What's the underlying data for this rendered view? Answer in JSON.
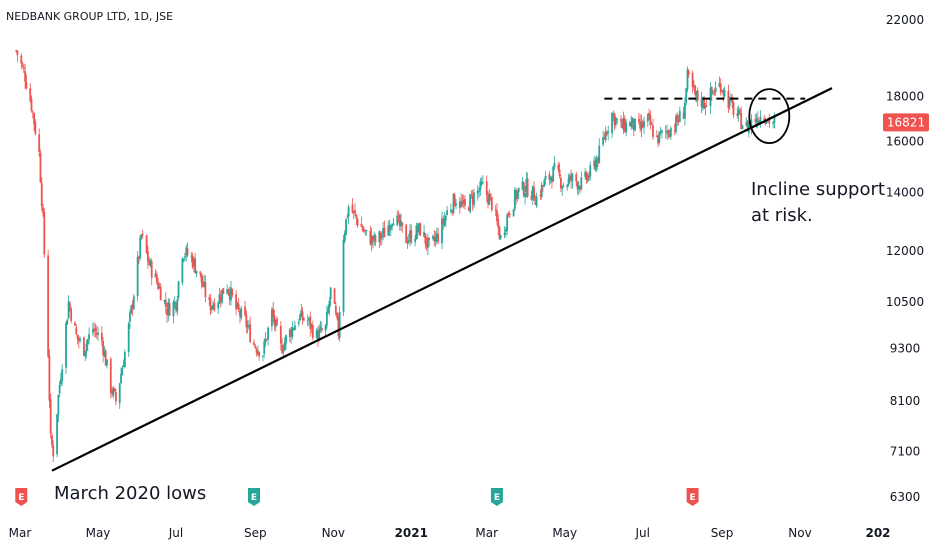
{
  "chart_title": "NEDBANK GROUP LTD, 1D, JSE",
  "chart_data": {
    "type": "candlestick",
    "title": "NEDBANK GROUP LTD, 1D, JSE",
    "y_scale": "log",
    "ylim": [
      6000,
      23500
    ],
    "y_ticks": [
      {
        "value": 22000,
        "label": "22000"
      },
      {
        "value": 18000,
        "label": "18000"
      },
      {
        "value": 16000,
        "label": "16000"
      },
      {
        "value": 14000,
        "label": "14000"
      },
      {
        "value": 12000,
        "label": "12000"
      },
      {
        "value": 10500,
        "label": "10500"
      },
      {
        "value": 9300,
        "label": "9300"
      },
      {
        "value": 8100,
        "label": "8100"
      },
      {
        "value": 7100,
        "label": "7100"
      },
      {
        "value": 6300,
        "label": "6300"
      }
    ],
    "x_ticks": [
      {
        "date": "2020-03",
        "label": "Mar",
        "bold": false
      },
      {
        "date": "2020-05",
        "label": "May",
        "bold": false
      },
      {
        "date": "2020-07",
        "label": "Jul",
        "bold": false
      },
      {
        "date": "2020-09",
        "label": "Sep",
        "bold": false
      },
      {
        "date": "2020-11",
        "label": "Nov",
        "bold": false
      },
      {
        "date": "2021-01",
        "label": "2021",
        "bold": true
      },
      {
        "date": "2021-03",
        "label": "Mar",
        "bold": false
      },
      {
        "date": "2021-05",
        "label": "May",
        "bold": false
      },
      {
        "date": "2021-07",
        "label": "Jul",
        "bold": false
      },
      {
        "date": "2021-09",
        "label": "Sep",
        "bold": false
      },
      {
        "date": "2021-11",
        "label": "Nov",
        "bold": false
      },
      {
        "date": "2022-01",
        "label": "202",
        "bold": true
      }
    ],
    "last_price": {
      "value": 16821,
      "label": "16821",
      "color": "#ef5350"
    },
    "colors": {
      "up": "#26a69a",
      "down": "#ef5350",
      "text": "#131722"
    },
    "price_path": [
      [
        "2020-02-27",
        20300
      ],
      [
        "2020-03-05",
        19000
      ],
      [
        "2020-03-10",
        17600
      ],
      [
        "2020-03-16",
        15500
      ],
      [
        "2020-03-19",
        13000
      ],
      [
        "2020-03-23",
        9200
      ],
      [
        "2020-03-25",
        7300
      ],
      [
        "2020-03-27",
        7100
      ],
      [
        "2020-03-31",
        8200
      ],
      [
        "2020-04-03",
        9000
      ],
      [
        "2020-04-08",
        10500
      ],
      [
        "2020-04-14",
        9600
      ],
      [
        "2020-04-20",
        9300
      ],
      [
        "2020-04-27",
        9800
      ],
      [
        "2020-05-04",
        9500
      ],
      [
        "2020-05-11",
        8400
      ],
      [
        "2020-05-15",
        8100
      ],
      [
        "2020-05-22",
        9200
      ],
      [
        "2020-05-28",
        10500
      ],
      [
        "2020-06-04",
        12500
      ],
      [
        "2020-06-10",
        11600
      ],
      [
        "2020-06-17",
        11000
      ],
      [
        "2020-06-24",
        10300
      ],
      [
        "2020-07-01",
        10500
      ],
      [
        "2020-07-06",
        12000
      ],
      [
        "2020-07-13",
        11800
      ],
      [
        "2020-07-20",
        11200
      ],
      [
        "2020-07-27",
        10400
      ],
      [
        "2020-08-03",
        10600
      ],
      [
        "2020-08-10",
        11000
      ],
      [
        "2020-08-17",
        10300
      ],
      [
        "2020-08-24",
        10000
      ],
      [
        "2020-08-31",
        9400
      ],
      [
        "2020-09-07",
        9200
      ],
      [
        "2020-09-14",
        10200
      ],
      [
        "2020-09-21",
        9300
      ],
      [
        "2020-09-28",
        9700
      ],
      [
        "2020-10-05",
        10100
      ],
      [
        "2020-10-12",
        10000
      ],
      [
        "2020-10-19",
        9600
      ],
      [
        "2020-10-26",
        9800
      ],
      [
        "2020-10-30",
        10800
      ],
      [
        "2020-11-05",
        9700
      ],
      [
        "2020-11-09",
        12500
      ],
      [
        "2020-11-13",
        13500
      ],
      [
        "2020-11-20",
        13000
      ],
      [
        "2020-11-27",
        12500
      ],
      [
        "2020-12-04",
        12300
      ],
      [
        "2020-12-11",
        12600
      ],
      [
        "2020-12-18",
        13200
      ],
      [
        "2020-12-28",
        12400
      ],
      [
        "2021-01-08",
        12700
      ],
      [
        "2021-01-15",
        12100
      ],
      [
        "2021-01-22",
        12500
      ],
      [
        "2021-01-29",
        13300
      ],
      [
        "2021-02-05",
        13800
      ],
      [
        "2021-02-12",
        13400
      ],
      [
        "2021-02-19",
        13900
      ],
      [
        "2021-02-26",
        14200
      ],
      [
        "2021-03-05",
        13600
      ],
      [
        "2021-03-12",
        12400
      ],
      [
        "2021-03-18",
        13300
      ],
      [
        "2021-03-25",
        14000
      ],
      [
        "2021-04-01",
        14200
      ],
      [
        "2021-04-09",
        13800
      ],
      [
        "2021-04-16",
        14400
      ],
      [
        "2021-04-23",
        14800
      ],
      [
        "2021-04-30",
        14300
      ],
      [
        "2021-05-07",
        14500
      ],
      [
        "2021-05-14",
        14300
      ],
      [
        "2021-05-21",
        14700
      ],
      [
        "2021-05-28",
        15500
      ],
      [
        "2021-06-02",
        16400
      ],
      [
        "2021-06-07",
        17200
      ],
      [
        "2021-06-14",
        16600
      ],
      [
        "2021-06-21",
        16800
      ],
      [
        "2021-06-28",
        16500
      ],
      [
        "2021-07-05",
        16900
      ],
      [
        "2021-07-12",
        16100
      ],
      [
        "2021-07-19",
        16400
      ],
      [
        "2021-07-26",
        16700
      ],
      [
        "2021-08-02",
        17300
      ],
      [
        "2021-08-05",
        18900
      ],
      [
        "2021-08-11",
        18000
      ],
      [
        "2021-08-18",
        17700
      ],
      [
        "2021-08-25",
        18200
      ],
      [
        "2021-08-31",
        18600
      ],
      [
        "2021-09-06",
        17800
      ],
      [
        "2021-09-13",
        17100
      ],
      [
        "2021-09-20",
        16600
      ],
      [
        "2021-09-27",
        17000
      ],
      [
        "2021-10-04",
        17200
      ],
      [
        "2021-10-08",
        16900
      ],
      [
        "2021-10-12",
        16821
      ]
    ],
    "support_line": {
      "start": [
        "2020-03-26",
        6750
      ],
      "end": [
        "2021-11-26",
        18400
      ],
      "label": "Incline support line"
    },
    "resistance_line": {
      "start": [
        "2021-06-01",
        17900
      ],
      "end": [
        "2021-11-05",
        17900
      ]
    },
    "risk_circle": {
      "center": [
        "2021-10-08",
        17100
      ]
    },
    "annotations": [
      {
        "text": "March 2020 lows"
      },
      {
        "text_lines": [
          "Incline support",
          "at risk."
        ]
      }
    ],
    "earnings_markers": [
      {
        "date": "2020-03-02",
        "letter": "E",
        "color": "#ef5350"
      },
      {
        "date": "2020-08-31",
        "letter": "E",
        "color": "#26a69a"
      },
      {
        "date": "2021-03-09",
        "letter": "E",
        "color": "#26a69a"
      },
      {
        "date": "2021-08-09",
        "letter": "E",
        "color": "#ef5350"
      }
    ]
  }
}
